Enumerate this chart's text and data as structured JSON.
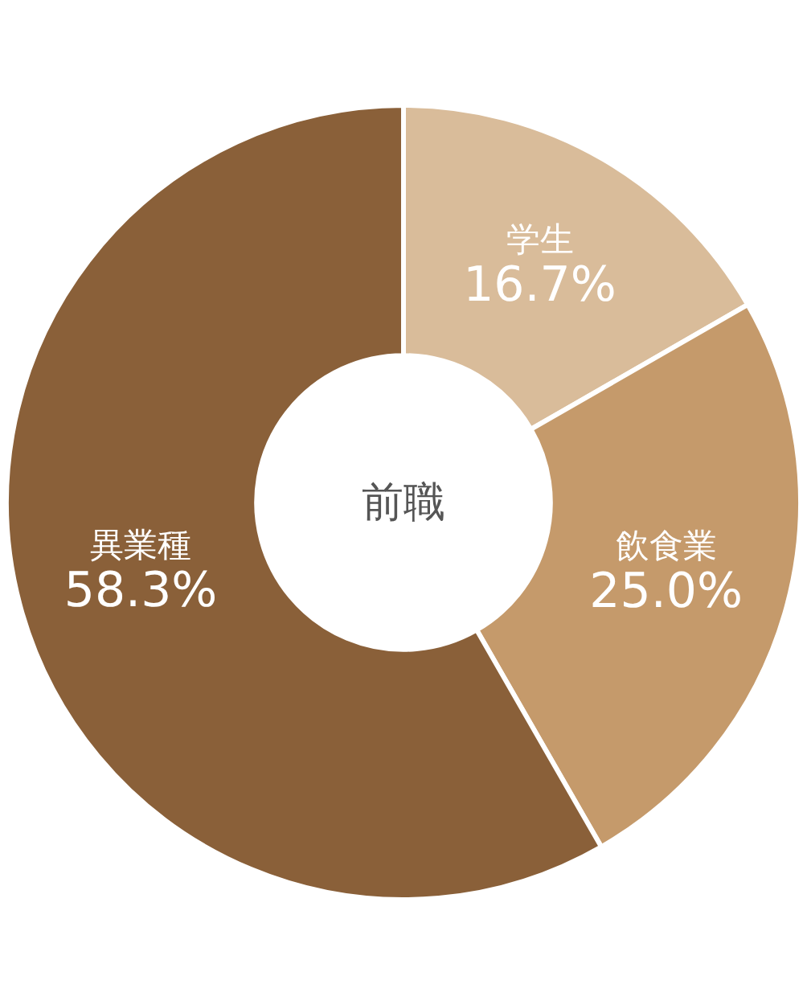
{
  "chart_data": {
    "type": "donut",
    "title": "前職",
    "categories": [
      "学生",
      "飲食業",
      "異業種"
    ],
    "values": [
      16.7,
      25.0,
      58.3
    ],
    "colors": [
      "#d9bc9a",
      "#c59a6b",
      "#8a6039"
    ],
    "value_labels": [
      "16.7%",
      "25.0%",
      "58.3%"
    ]
  }
}
